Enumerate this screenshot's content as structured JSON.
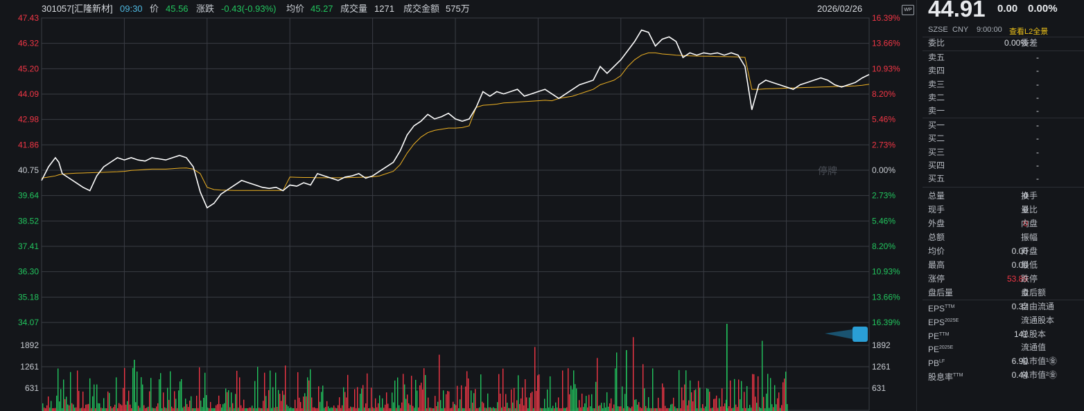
{
  "header": {
    "code_name": "301057[汇隆新材]",
    "time": "09:30",
    "price_label": "价",
    "price": "45.56",
    "change_label": "涨跌",
    "change": "-0.43(-0.93%)",
    "avg_label": "均价",
    "avg": "45.27",
    "vol_label": "成交量",
    "vol": "1271",
    "amount_label": "成交金额",
    "amount": "575万",
    "date": "2026/02/26",
    "wp_icon_text": "WP"
  },
  "colors": {
    "up": "#f23645",
    "down": "#22c55e",
    "price_line": "#ffffff",
    "avg_line": "#f0b323",
    "grid": "#3a3d44"
  },
  "chart_data": {
    "type": "line",
    "price_ticks": [
      "47.43",
      "46.32",
      "45.20",
      "44.09",
      "42.98",
      "41.86",
      "40.75",
      "39.64",
      "38.52",
      "37.41",
      "36.30",
      "35.18",
      "34.07"
    ],
    "pct_ticks": [
      "16.39%",
      "13.66%",
      "10.93%",
      "8.20%",
      "5.46%",
      "2.73%",
      "0.00%",
      "2.73%",
      "5.46%",
      "8.20%",
      "10.93%",
      "13.66%",
      "16.39%"
    ],
    "volume_ticks": [
      "1892",
      "1261",
      "631"
    ],
    "ylim": [
      34.07,
      47.43
    ],
    "base_price": 40.75,
    "halt_label": "停牌",
    "x": [
      0,
      2,
      4,
      5,
      6,
      8,
      10,
      12,
      14,
      16,
      18,
      20,
      22,
      24,
      25,
      26,
      28,
      30,
      32,
      34,
      36,
      38,
      40,
      42,
      44,
      46,
      48,
      50,
      52,
      54,
      56,
      58,
      60,
      62,
      64,
      66,
      68,
      70,
      72,
      74,
      76,
      78,
      80,
      82,
      84,
      86,
      88,
      90,
      92,
      94,
      96,
      98,
      100,
      102,
      104,
      106,
      108,
      110,
      112,
      114,
      116,
      118,
      120,
      122,
      124,
      126,
      128,
      130,
      132,
      134,
      136,
      138,
      140,
      142,
      144,
      146,
      148,
      150,
      152,
      154,
      156,
      158,
      160,
      162,
      164,
      166,
      168,
      170,
      172,
      174,
      176,
      178,
      180,
      182,
      184,
      186,
      188,
      190,
      192,
      194,
      196,
      198,
      200,
      202,
      204,
      206,
      208,
      210,
      212,
      214,
      216,
      218,
      220,
      222,
      224,
      226,
      228,
      230,
      232,
      234,
      236,
      238,
      240
    ],
    "price": [
      40.3,
      40.9,
      41.3,
      41.1,
      40.6,
      40.4,
      40.2,
      40.0,
      39.85,
      40.5,
      40.9,
      41.1,
      41.3,
      41.2,
      41.25,
      41.3,
      41.2,
      41.15,
      41.3,
      41.25,
      41.2,
      41.3,
      41.4,
      41.3,
      40.9,
      39.8,
      39.1,
      39.3,
      39.7,
      39.9,
      40.1,
      40.3,
      40.2,
      40.1,
      40.0,
      39.95,
      40.0,
      39.85,
      40.1,
      40.05,
      40.2,
      40.1,
      40.6,
      40.5,
      40.4,
      40.3,
      40.45,
      40.5,
      40.6,
      40.4,
      40.5,
      40.7,
      40.9,
      41.1,
      41.6,
      42.3,
      42.7,
      42.9,
      43.2,
      43.0,
      43.1,
      43.25,
      43.0,
      42.9,
      43.0,
      43.5,
      44.2,
      44.0,
      44.2,
      44.1,
      44.2,
      44.3,
      44.0,
      44.1,
      44.2,
      44.3,
      44.1,
      43.9,
      44.1,
      44.3,
      44.5,
      44.6,
      44.7,
      45.3,
      45.0,
      45.3,
      45.6,
      46.0,
      46.4,
      46.9,
      46.8,
      46.2,
      46.5,
      46.6,
      46.4,
      45.7,
      45.9,
      45.8,
      45.9,
      45.85,
      45.9,
      45.8,
      45.9,
      45.8,
      45.3,
      43.4,
      44.5,
      44.7,
      44.6,
      44.5,
      44.4,
      44.3,
      44.5,
      44.6,
      44.7,
      44.8,
      44.7,
      44.5,
      44.4,
      44.5,
      44.6,
      44.8,
      44.95
    ],
    "avg": [
      40.4,
      40.45,
      40.5,
      40.55,
      40.58,
      40.6,
      40.62,
      40.63,
      40.64,
      40.65,
      40.66,
      40.67,
      40.68,
      40.7,
      40.72,
      40.74,
      40.76,
      40.78,
      40.8,
      40.8,
      40.8,
      40.82,
      40.84,
      40.85,
      40.8,
      40.6,
      40.0,
      39.9,
      39.88,
      39.87,
      39.86,
      39.86,
      39.86,
      39.86,
      39.86,
      39.86,
      39.86,
      39.86,
      40.45,
      40.44,
      40.43,
      40.43,
      40.42,
      40.42,
      40.42,
      40.42,
      40.42,
      40.43,
      40.44,
      40.45,
      40.46,
      40.5,
      40.6,
      40.7,
      41.0,
      41.5,
      41.9,
      42.2,
      42.4,
      42.5,
      42.55,
      42.6,
      42.6,
      42.62,
      42.7,
      43.5,
      43.6,
      43.62,
      43.65,
      43.7,
      43.72,
      43.74,
      43.76,
      43.78,
      43.8,
      43.82,
      43.8,
      43.9,
      43.95,
      44.0,
      44.1,
      44.2,
      44.3,
      44.5,
      44.6,
      44.7,
      44.9,
      45.3,
      45.6,
      45.8,
      45.9,
      45.9,
      45.85,
      45.83,
      45.8,
      45.78,
      45.77,
      45.76,
      45.75,
      45.75,
      45.74,
      45.74,
      45.73,
      45.72,
      45.7,
      44.3,
      44.3,
      44.32,
      44.33,
      44.34,
      44.35,
      44.36,
      44.37,
      44.38,
      44.39,
      44.4,
      44.41,
      44.42,
      44.43,
      44.44,
      44.45,
      44.48,
      44.52
    ]
  },
  "quote": {
    "price": "44.91",
    "change": "0.00",
    "pct": "0.00%",
    "exchange": "SZSE",
    "currency": "CNY",
    "time": "9:00:00",
    "l2_link": "查看L2全景"
  },
  "order_ratio": {
    "label": "委比",
    "value": "0.00%",
    "label2": "委差"
  },
  "asks": [
    {
      "label": "卖五",
      "value": "-"
    },
    {
      "label": "卖四",
      "value": "-"
    },
    {
      "label": "卖三",
      "value": "-"
    },
    {
      "label": "卖二",
      "value": "-"
    },
    {
      "label": "卖一",
      "value": "-"
    }
  ],
  "bids": [
    {
      "label": "买一",
      "value": "-"
    },
    {
      "label": "买二",
      "value": "-"
    },
    {
      "label": "买三",
      "value": "-"
    },
    {
      "label": "买四",
      "value": "-"
    },
    {
      "label": "买五",
      "value": "-"
    }
  ],
  "stats": [
    {
      "label": "总量",
      "value": "0",
      "label2": "换手",
      "value2": ""
    },
    {
      "label": "现手",
      "value": "0",
      "label2": "量比",
      "value2": ""
    },
    {
      "label": "外盘",
      "value": "0",
      "label2": "内盘",
      "value2": "",
      "value_color": "#f23645"
    },
    {
      "label": "总额",
      "value": "-",
      "label2": "振幅",
      "value2": ""
    },
    {
      "label": "均价",
      "value": "0.00",
      "label2": "开盘",
      "value2": ""
    },
    {
      "label": "最高",
      "value": "0.00",
      "label2": "最低",
      "value2": ""
    },
    {
      "label": "涨停",
      "value": "53.89",
      "label2": "跌停",
      "value2": "",
      "value_color": "#f23645"
    },
    {
      "label": "盘后量",
      "value": "0",
      "label2": "盘后额",
      "value2": ""
    }
  ],
  "fundamentals": [
    {
      "label": "EPS",
      "sup": "TTM",
      "value": "0.32",
      "label2": "自由流通"
    },
    {
      "label": "EPS",
      "sup": "2025E",
      "value": "-",
      "label2": "流通股本"
    },
    {
      "label": "PE",
      "sup": "TTM",
      "value": "141",
      "label2": "总股本"
    },
    {
      "label": "PE",
      "sup": "2025E",
      "value": "-",
      "label2": "流通值"
    },
    {
      "label": "PB",
      "sup": "LF",
      "value": "6.90",
      "label2": "总市值¹㊎"
    },
    {
      "label": "股息率",
      "sup": "TTM",
      "value": "0.44",
      "label2": "总市值²㊎"
    }
  ],
  "expand_icon": "»"
}
